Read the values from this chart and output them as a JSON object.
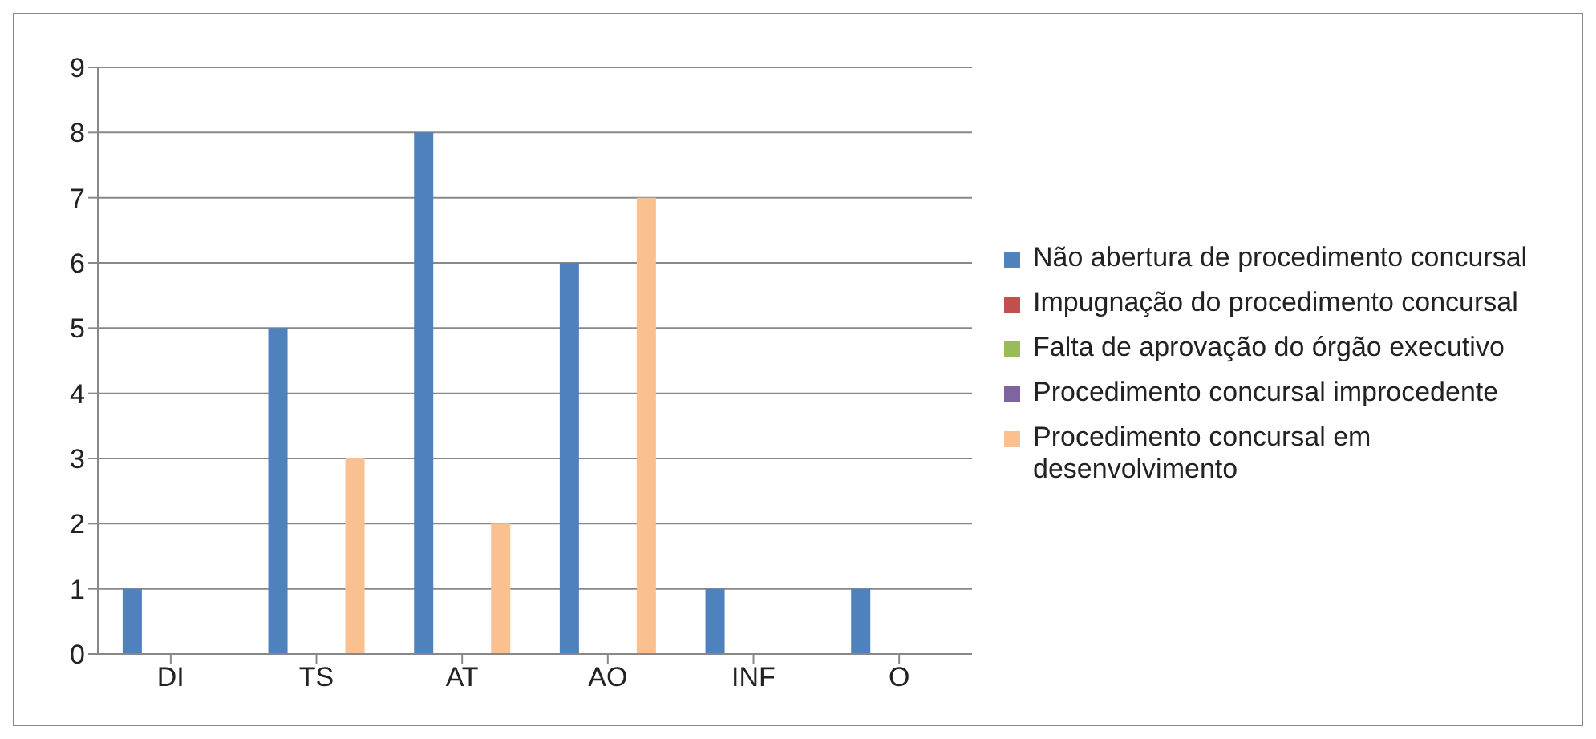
{
  "chart_data": {
    "type": "bar",
    "categories": [
      "DI",
      "TS",
      "AT",
      "AO",
      "INF",
      "O"
    ],
    "series": [
      {
        "name": "Não abertura de procedimento concursal",
        "color": "#4f81bd",
        "values": [
          1,
          5,
          8,
          6,
          1,
          1
        ]
      },
      {
        "name": "Impugnação do procedimento concursal",
        "color": "#c0504d",
        "values": [
          0,
          0,
          0,
          0,
          0,
          0
        ]
      },
      {
        "name": "Falta de aprovação do órgão executivo",
        "color": "#9bbb59",
        "values": [
          0,
          0,
          0,
          0,
          0,
          0
        ]
      },
      {
        "name": "Procedimento concursal improcedente",
        "color": "#8064a2",
        "values": [
          0,
          0,
          0,
          0,
          0,
          0
        ]
      },
      {
        "name": "Procedimento concursal em desenvolvimento",
        "color": "#fac090",
        "values": [
          0,
          3,
          2,
          7,
          0,
          0
        ]
      }
    ],
    "ylim": [
      0,
      9
    ],
    "yticks": [
      0,
      1,
      2,
      3,
      4,
      5,
      6,
      7,
      8,
      9
    ],
    "grid": "y",
    "legend": "right"
  }
}
